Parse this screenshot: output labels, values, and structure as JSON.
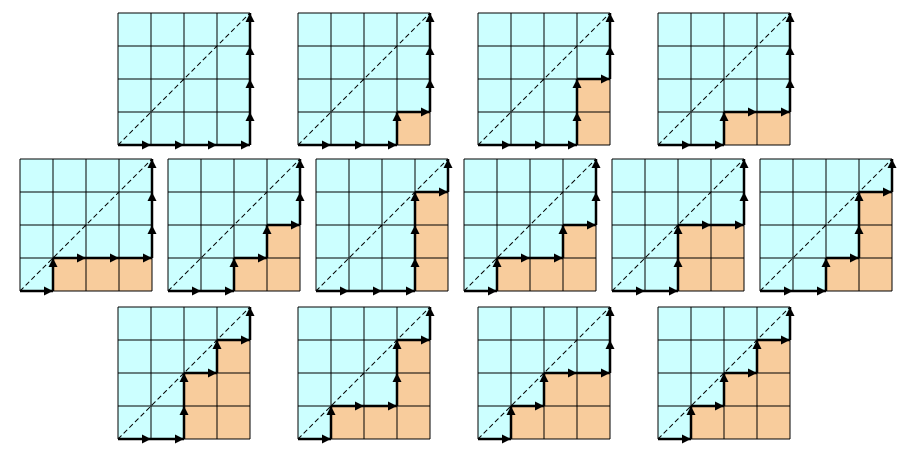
{
  "diagram": {
    "grid_size": 4,
    "colors": {
      "grid_fill": "#ccffff",
      "shaded_fill": "#f8cc9c",
      "line": "#000000"
    },
    "rows": [
      [
        {
          "id": "p1",
          "cells": []
        },
        {
          "id": "p2",
          "cells": [
            [
              3,
              0
            ]
          ]
        },
        {
          "id": "p3",
          "cells": [
            [
              3,
              0
            ],
            [
              3,
              1
            ]
          ]
        },
        {
          "id": "p4",
          "cells": [
            [
              2,
              0
            ],
            [
              3,
              0
            ]
          ]
        }
      ],
      [
        {
          "id": "p5",
          "cells": [
            [
              1,
              0
            ],
            [
              2,
              0
            ],
            [
              3,
              0
            ]
          ]
        },
        {
          "id": "p6",
          "cells": [
            [
              2,
              0
            ],
            [
              3,
              0
            ],
            [
              3,
              1
            ]
          ]
        },
        {
          "id": "p7",
          "cells": [
            [
              3,
              0
            ],
            [
              3,
              1
            ],
            [
              3,
              2
            ]
          ]
        },
        {
          "id": "p8",
          "cells": [
            [
              1,
              0
            ],
            [
              2,
              0
            ],
            [
              3,
              0
            ],
            [
              3,
              1
            ]
          ]
        },
        {
          "id": "p9",
          "cells": [
            [
              2,
              0
            ],
            [
              3,
              0
            ],
            [
              2,
              1
            ],
            [
              3,
              1
            ]
          ]
        },
        {
          "id": "p10",
          "cells": [
            [
              2,
              0
            ],
            [
              3,
              0
            ],
            [
              3,
              1
            ],
            [
              3,
              2
            ]
          ]
        }
      ],
      [
        {
          "id": "p11",
          "cells": [
            [
              2,
              0
            ],
            [
              3,
              0
            ],
            [
              2,
              1
            ],
            [
              3,
              1
            ],
            [
              3,
              2
            ]
          ]
        },
        {
          "id": "p12",
          "cells": [
            [
              1,
              0
            ],
            [
              2,
              0
            ],
            [
              3,
              0
            ],
            [
              3,
              1
            ],
            [
              3,
              2
            ]
          ]
        },
        {
          "id": "p13",
          "cells": [
            [
              1,
              0
            ],
            [
              2,
              0
            ],
            [
              3,
              0
            ],
            [
              2,
              1
            ],
            [
              3,
              1
            ]
          ]
        },
        {
          "id": "p14",
          "cells": [
            [
              1,
              0
            ],
            [
              2,
              0
            ],
            [
              3,
              0
            ],
            [
              2,
              1
            ],
            [
              3,
              1
            ],
            [
              3,
              2
            ]
          ]
        }
      ]
    ]
  }
}
